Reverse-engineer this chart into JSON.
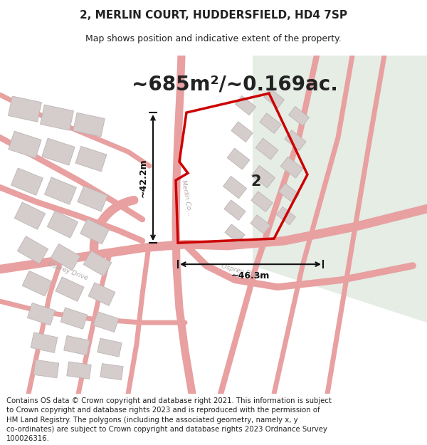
{
  "title_line1": "2, MERLIN COURT, HUDDERSFIELD, HD4 7SP",
  "title_line2": "Map shows position and indicative extent of the property.",
  "area_text": "~685m²/~0.169ac.",
  "label_number": "2",
  "dim_vertical": "~42.2m",
  "dim_horizontal": "~46.3m",
  "footer_lines": [
    "Contains OS data © Crown copyright and database right 2021. This information is subject",
    "to Crown copyright and database rights 2023 and is reproduced with the permission of",
    "HM Land Registry. The polygons (including the associated geometry, namely x, y",
    "co-ordinates) are subject to Crown copyright and database rights 2023 Ordnance Survey",
    "100026316."
  ],
  "bg_map_color": "#f2edec",
  "bg_right_color": "#e5ede5",
  "road_color": "#e8a0a0",
  "building_face": "#d5cccc",
  "building_edge": "#bdb5b5",
  "plot_color": "#cc0000",
  "dim_color": "#111111",
  "text_dark": "#222222",
  "street_color": "#b0a8a8",
  "title_fs": 11,
  "subtitle_fs": 9,
  "area_fs": 20,
  "dim_fs": 9,
  "num_fs": 15,
  "footer_fs": 7.3
}
